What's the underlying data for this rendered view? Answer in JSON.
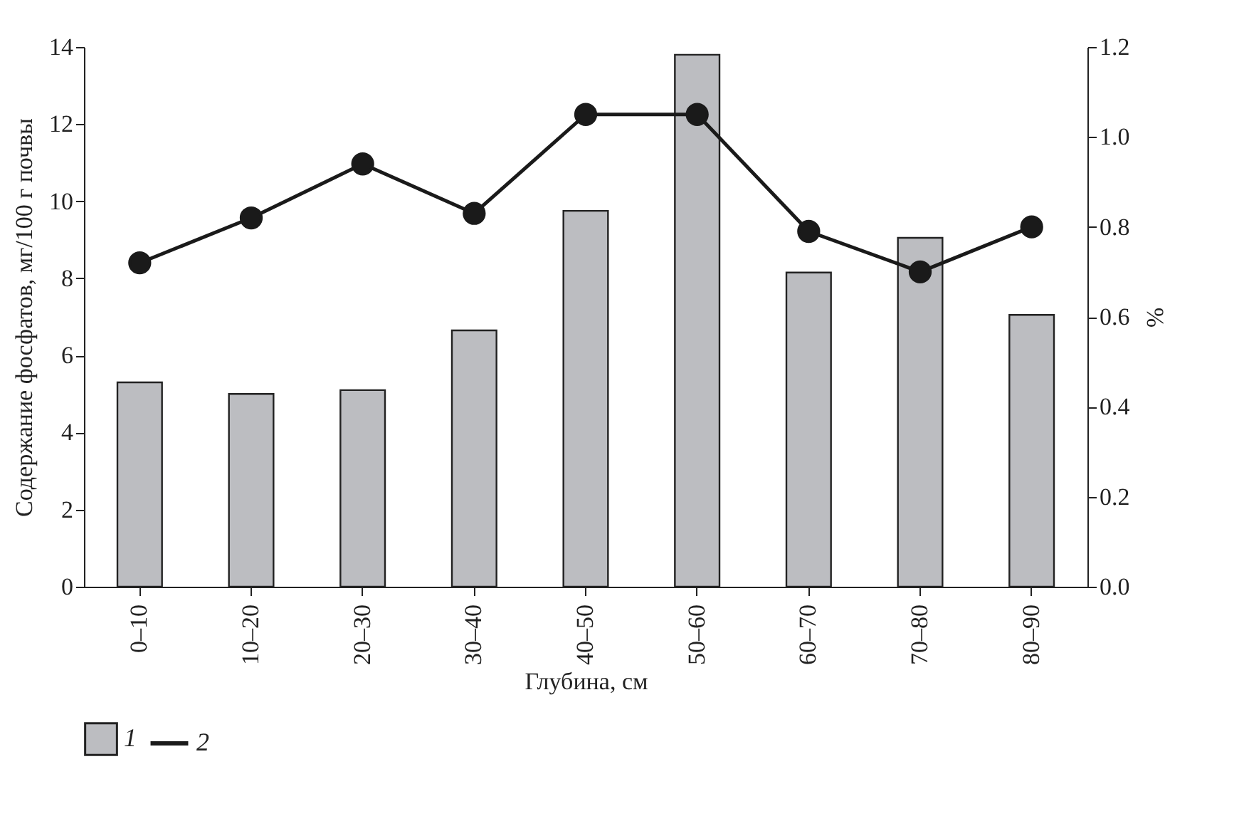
{
  "chart_data": {
    "type": "bar",
    "xlabel": "Глубина, см",
    "ylabel": "Содержание фосфатов, мг/100 г почвы",
    "y2label": "%",
    "categories": [
      "0–10",
      "10–20",
      "20–30",
      "30–40",
      "40–50",
      "50–60",
      "60–70",
      "70–80",
      "80–90"
    ],
    "series": [
      {
        "name": "1",
        "color": "#bcbdc1",
        "values": [
          5.3,
          5.0,
          5.1,
          6.65,
          9.75,
          13.8,
          8.15,
          9.05,
          7.05
        ]
      },
      {
        "name": "2",
        "type": "line",
        "axis": "y2",
        "color": "#1a1a1a",
        "marker": "circle",
        "values": [
          0.72,
          0.82,
          0.94,
          0.83,
          1.05,
          1.05,
          0.79,
          0.7,
          0.8
        ]
      }
    ],
    "ylim": [
      0,
      14
    ],
    "yticks": [
      0,
      2,
      4,
      6,
      8,
      10,
      12,
      14
    ],
    "y2lim": [
      0,
      1.2
    ],
    "y2ticks": [
      {
        "value": 0,
        "label": "0.0"
      },
      0.2,
      0.4,
      0.6,
      0.8,
      {
        "value": 1,
        "label": "1.0"
      },
      1.2
    ],
    "legend": "bottom",
    "grid": false
  }
}
